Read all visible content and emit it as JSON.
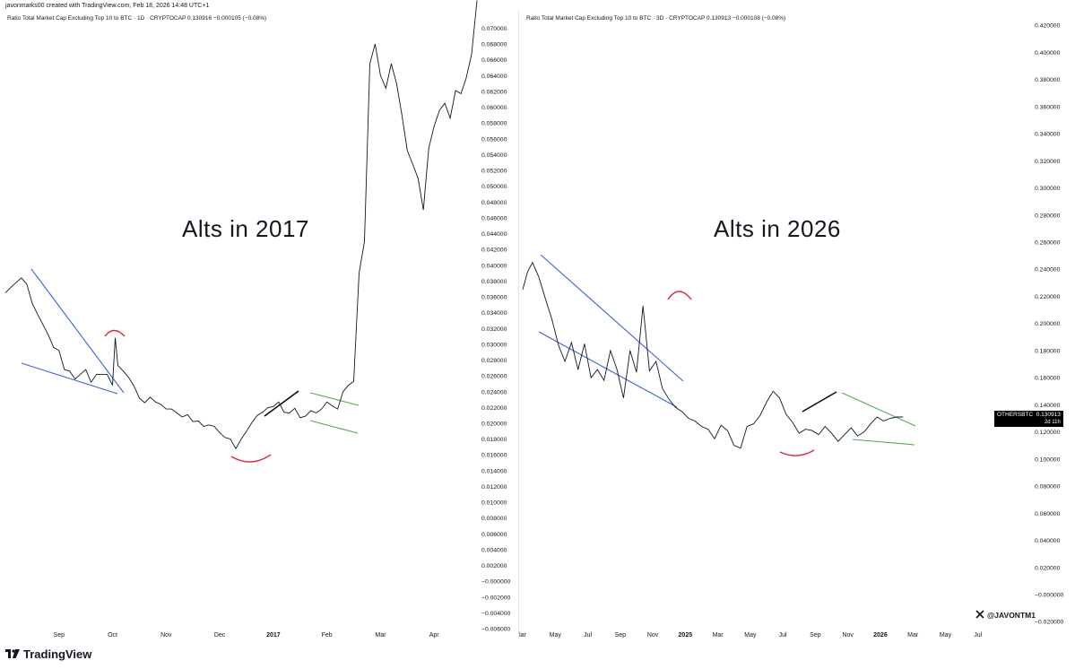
{
  "header": {
    "text": "javonmarks00 created with TradingView.com, Feb 18, 2026 14:48 UTC+1"
  },
  "footer": {
    "brand": "TradingView",
    "handle": "@JAVONTM1"
  },
  "colors": {
    "trendline_blue": "#3a62e0",
    "bracket_green": "#4caf50",
    "arc_red": "#e0283c",
    "line_black": "#000000",
    "price": "#131722"
  },
  "panels": [
    {
      "title": "Ratio Total Market Cap Excluding Top 10 to BTC · 1D · CRYPTOCAP  0.130916  −0.000105 (−0.08%)",
      "overlay": "Alts in 2017"
    },
    {
      "title": "Ratio Total Market Cap Excluding Top 10 to BTC · 3D · CRYPTOCAP  0.130913  −0.000108 (−0.08%)",
      "overlay": "Alts in 2026",
      "price_badge": {
        "symbol": "OTHERSBTC",
        "value": "0.130913",
        "countdown": "2d 11h"
      }
    }
  ],
  "chart_data": [
    {
      "type": "line",
      "title": "Ratio Total Market Cap Excluding Top 10 to BTC · 1D · CRYPTOCAP",
      "y_ticks": [
        "0.070000",
        "0.068000",
        "0.066000",
        "0.064000",
        "0.062000",
        "0.060000",
        "0.058000",
        "0.056000",
        "0.054000",
        "0.052000",
        "0.050000",
        "0.048000",
        "0.046000",
        "0.044000",
        "0.042000",
        "0.040000",
        "0.038000",
        "0.036000",
        "0.034000",
        "0.032000",
        "0.030000",
        "0.028000",
        "0.026000",
        "0.024000",
        "0.022000",
        "0.020000",
        "0.018000",
        "0.016000",
        "0.014000",
        "0.012000",
        "0.010000",
        "0.008000",
        "0.006000",
        "0.004000",
        "0.002000",
        "−0.000000",
        "−0.002000",
        "−0.004000",
        "−0.006000"
      ],
      "ylim": [
        -0.0061,
        0.0722
      ],
      "x_ticks": [
        "Sep",
        "Oct",
        "Nov",
        "Dec",
        "2017",
        "Feb",
        "Mar",
        "Apr"
      ],
      "bold_x_ticks": [
        "2017"
      ],
      "x_range": [
        0,
        8.8
      ],
      "x_tick_positions": [
        1.0,
        2.0,
        3.0,
        4.0,
        5.0,
        6.0,
        7.0,
        8.0
      ],
      "series": [
        {
          "x": [
            0.0,
            0.1,
            0.2,
            0.3,
            0.4,
            0.5,
            0.6,
            0.7,
            0.8,
            0.9,
            1.0,
            1.1,
            1.2,
            1.3,
            1.4,
            1.5,
            1.6,
            1.7,
            1.8,
            1.9,
            2.0,
            2.05,
            2.1,
            2.2,
            2.3,
            2.4,
            2.5,
            2.6,
            2.7,
            2.8,
            2.9,
            3.0,
            3.1,
            3.2,
            3.3,
            3.4,
            3.5,
            3.6,
            3.7,
            3.8,
            3.9,
            4.0,
            4.1,
            4.2,
            4.3,
            4.4,
            4.5,
            4.6,
            4.7,
            4.8,
            4.9,
            5.0,
            5.1,
            5.2,
            5.3,
            5.4,
            5.5,
            5.6,
            5.7,
            5.8,
            5.9,
            6.0,
            6.1,
            6.2,
            6.3,
            6.4,
            6.5,
            6.6,
            6.7,
            6.8,
            6.9,
            7.0,
            7.1,
            7.2,
            7.3,
            7.4,
            7.5,
            7.6,
            7.7,
            7.8,
            7.9,
            8.0,
            8.1,
            8.2,
            8.3,
            8.4,
            8.5,
            8.6,
            8.7,
            8.8
          ],
          "y": [
            0.0365,
            0.0372,
            0.0378,
            0.0384,
            0.0376,
            0.0352,
            0.0338,
            0.0325,
            0.0312,
            0.0296,
            0.0292,
            0.0268,
            0.0266,
            0.0256,
            0.0262,
            0.0268,
            0.0252,
            0.0262,
            0.0262,
            0.0262,
            0.0248,
            0.0308,
            0.0273,
            0.0266,
            0.0258,
            0.0247,
            0.0232,
            0.0226,
            0.0233,
            0.0227,
            0.0224,
            0.0218,
            0.0218,
            0.0213,
            0.0208,
            0.0211,
            0.0202,
            0.0203,
            0.0196,
            0.0198,
            0.0196,
            0.0188,
            0.0182,
            0.018,
            0.0168,
            0.018,
            0.019,
            0.0201,
            0.021,
            0.0214,
            0.022,
            0.0221,
            0.0227,
            0.0214,
            0.0213,
            0.0219,
            0.0207,
            0.0209,
            0.0216,
            0.0213,
            0.0218,
            0.0227,
            0.0222,
            0.0218,
            0.024,
            0.0248,
            0.0253,
            0.039,
            0.043,
            0.0655,
            0.068,
            0.064,
            0.0624,
            0.0655,
            0.063,
            0.059,
            0.0545,
            0.0528,
            0.051,
            0.047,
            0.0548,
            0.0576,
            0.0596,
            0.0605,
            0.0586,
            0.0621,
            0.0617,
            0.0637,
            0.0667,
            0.0735
          ]
        }
      ]
    },
    {
      "type": "line",
      "title": "Ratio Total Market Cap Excluding Top 10 to BTC · 3D · CRYPTOCAP",
      "y_ticks": [
        "0.420000",
        "0.400000",
        "0.380000",
        "0.360000",
        "0.340000",
        "0.320000",
        "0.300000",
        "0.280000",
        "0.260000",
        "0.240000",
        "0.220000",
        "0.200000",
        "0.180000",
        "0.160000",
        "0.140000",
        "0.120000",
        "0.100000",
        "0.080000",
        "0.060000",
        "0.040000",
        "0.020000",
        "−0.000000",
        "−0.020000"
      ],
      "ylim": [
        -0.0258,
        0.4307
      ],
      "x_ticks": [
        "lar",
        "May",
        "Jul",
        "Sep",
        "Nov",
        "2025",
        "Mar",
        "May",
        "Jul",
        "Sep",
        "Nov",
        "2026",
        "Mar",
        "May",
        "Jul"
      ],
      "bold_x_ticks": [
        "2025",
        "2026"
      ],
      "x_range": [
        0,
        30
      ],
      "x_tick_positions": [
        0,
        2,
        4,
        6,
        8,
        10,
        12,
        14,
        16,
        18,
        20,
        22,
        24,
        26,
        28
      ],
      "series": [
        {
          "x": [
            0.0,
            0.3,
            0.6,
            1.0,
            1.4,
            1.8,
            2.2,
            2.6,
            3.0,
            3.4,
            3.8,
            4.2,
            4.6,
            5.0,
            5.4,
            5.8,
            6.2,
            6.6,
            7.0,
            7.4,
            7.8,
            8.2,
            8.6,
            9.0,
            9.4,
            9.8,
            10.2,
            10.6,
            11.0,
            11.4,
            11.8,
            12.2,
            12.6,
            13.0,
            13.4,
            13.8,
            14.2,
            14.6,
            15.0,
            15.4,
            15.8,
            16.2,
            16.6,
            17.0,
            17.4,
            17.8,
            18.2,
            18.6,
            19.0,
            19.4,
            19.8,
            20.2,
            20.6,
            21.0,
            21.4,
            21.8,
            22.2,
            22.6,
            23.0,
            23.4
          ],
          "y": [
            0.225,
            0.238,
            0.245,
            0.234,
            0.218,
            0.203,
            0.184,
            0.172,
            0.186,
            0.166,
            0.185,
            0.16,
            0.166,
            0.158,
            0.18,
            0.166,
            0.145,
            0.18,
            0.164,
            0.213,
            0.165,
            0.172,
            0.152,
            0.144,
            0.138,
            0.135,
            0.13,
            0.128,
            0.124,
            0.122,
            0.115,
            0.125,
            0.121,
            0.11,
            0.108,
            0.124,
            0.126,
            0.132,
            0.142,
            0.15,
            0.145,
            0.133,
            0.127,
            0.119,
            0.122,
            0.121,
            0.118,
            0.124,
            0.119,
            0.113,
            0.118,
            0.123,
            0.117,
            0.12,
            0.126,
            0.131,
            0.128,
            0.13,
            0.131,
            0.131
          ]
        }
      ]
    }
  ]
}
